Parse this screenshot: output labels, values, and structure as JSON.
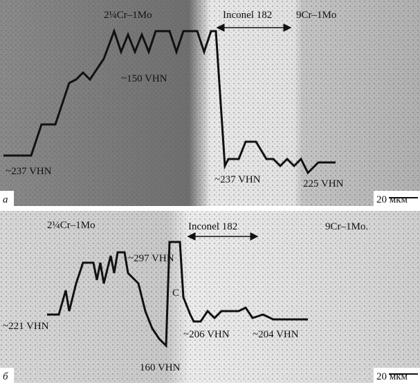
{
  "panels": [
    {
      "letter": "а",
      "left_alloy": "2¼Cr–1Mo",
      "middle": "Inconel 182",
      "right_alloy": "9Cr–1Mo",
      "scale": "20 мкм",
      "annotations": [
        "~150 VHN",
        "~237 VHN",
        "~237 VHN",
        "225 VHN"
      ]
    },
    {
      "letter": "б",
      "left_alloy": "2¼Cr–1Mo",
      "middle": "Inconel 182",
      "right_alloy": "9Cr–1Mo.",
      "scale": "20 мкм",
      "annotations": [
        "~297 VHN",
        "C",
        "~221 VHN",
        "160 VHN",
        "~206 VHN",
        "~204 VHN"
      ]
    }
  ]
}
